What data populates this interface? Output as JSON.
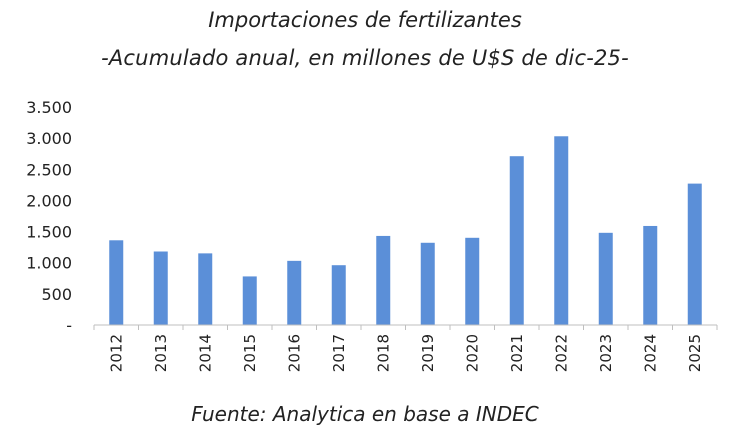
{
  "title": "Importaciones de fertilizantes",
  "subtitle": "-Acumulado anual, en millones de U$S de dic-25-",
  "source": "Fuente: Analytica en base a INDEC",
  "colors": {
    "bar": "#5b8fd8",
    "axis": "#bfbfbf"
  },
  "chart_data": {
    "type": "bar",
    "title": "Importaciones de fertilizantes",
    "subtitle": "-Acumulado anual, en millones de U$S de dic-25-",
    "categories": [
      "2012",
      "2013",
      "2014",
      "2015",
      "2016",
      "2017",
      "2018",
      "2019",
      "2020",
      "2021",
      "2022",
      "2023",
      "2024",
      "2025"
    ],
    "values": [
      1360,
      1180,
      1150,
      780,
      1030,
      960,
      1430,
      1320,
      1400,
      2710,
      3030,
      1480,
      1590,
      2270
    ],
    "ylim": [
      0,
      3500
    ],
    "yticks": [
      0,
      500,
      1000,
      1500,
      2000,
      2500,
      3000,
      3500
    ],
    "ytick_labels": [
      "-",
      "500",
      "1.000",
      "1.500",
      "2.000",
      "2.500",
      "3.000",
      "3.500"
    ],
    "grid": false,
    "legend": "none"
  }
}
